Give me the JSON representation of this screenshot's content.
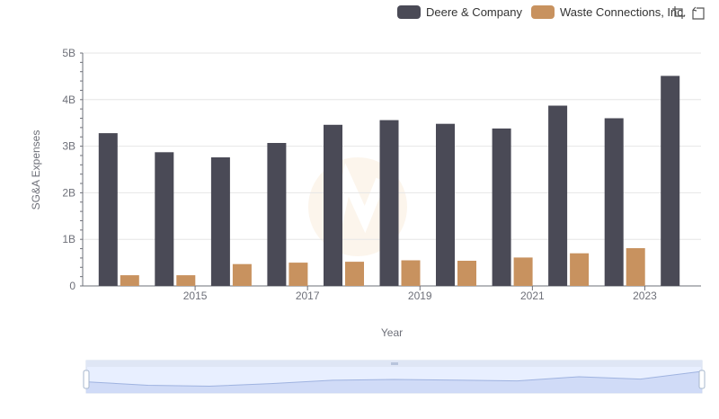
{
  "legend": {
    "series0": "Deere & Company",
    "series1": "Waste Connections, Inc."
  },
  "toolbox": {
    "zoom_icon": "zoom-select-icon",
    "restore_icon": "zoom-reset-icon"
  },
  "colors": {
    "series0": "#4a4a56",
    "series1": "#c8925f",
    "grid": "#e6e6e6",
    "axis": "#6e7079",
    "slider_fill": "#e8efff",
    "slider_border": "#d2dbee"
  },
  "chart_data": {
    "type": "bar",
    "x": [
      2014,
      2015,
      2016,
      2017,
      2018,
      2019,
      2020,
      2021,
      2022,
      2023,
      2024
    ],
    "x_tick_labels": [
      "2015",
      "2017",
      "2019",
      "2021",
      "2023"
    ],
    "series": [
      {
        "name": "Deere & Company",
        "values": [
          3.28,
          2.87,
          2.76,
          3.07,
          3.46,
          3.56,
          3.48,
          3.38,
          3.87,
          3.6,
          4.51
        ]
      },
      {
        "name": "Waste Connections, Inc.",
        "values": [
          0.23,
          0.23,
          0.47,
          0.5,
          0.52,
          0.55,
          0.54,
          0.61,
          0.7,
          0.81,
          null
        ]
      }
    ],
    "ylabel": "SG&A Expenses",
    "xlabel": "Year",
    "y_tick_labels": [
      "0",
      "1B",
      "2B",
      "3B",
      "4B",
      "5B"
    ],
    "ylim": [
      0,
      5
    ],
    "y_unit": "B",
    "grid": true,
    "legend_position": "top-right"
  }
}
